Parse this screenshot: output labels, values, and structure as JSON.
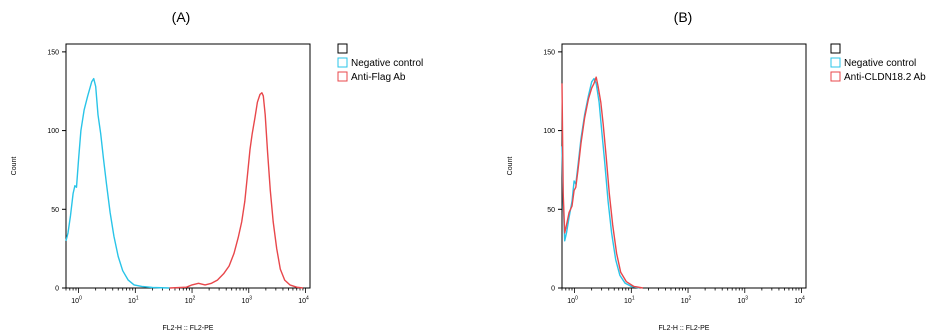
{
  "chart_data": [
    {
      "type": "line",
      "panel_label": "(A)",
      "xlabel": "FL2-H :: FL2-PE",
      "ylabel": "Count",
      "xscale": "log",
      "xlim": [
        0.6,
        12000
      ],
      "ylim": [
        0,
        155
      ],
      "x_ticks": [
        {
          "value": 1,
          "base": "10",
          "exp": "0"
        },
        {
          "value": 10,
          "base": "10",
          "exp": "1"
        },
        {
          "value": 100,
          "base": "10",
          "exp": "2"
        },
        {
          "value": 1000,
          "base": "10",
          "exp": "3"
        },
        {
          "value": 10000,
          "base": "10",
          "exp": "4"
        }
      ],
      "y_ticks": [
        0,
        50,
        100,
        150
      ],
      "grid": false,
      "legend_position": "right",
      "legend": [
        "",
        "Negative control",
        "Anti-Flag Ab"
      ],
      "colors": {
        "Negative control": "#29c4e8",
        "Anti-Flag Ab": "#e8474b"
      },
      "series": [
        {
          "name": "Negative control",
          "points": [
            [
              0.6,
              30
            ],
            [
              0.65,
              35
            ],
            [
              0.72,
              46
            ],
            [
              0.8,
              60
            ],
            [
              0.86,
              65
            ],
            [
              0.92,
              64
            ],
            [
              1.0,
              82
            ],
            [
              1.1,
              100
            ],
            [
              1.25,
              113
            ],
            [
              1.45,
              122
            ],
            [
              1.7,
              131
            ],
            [
              1.85,
              133
            ],
            [
              2.0,
              128
            ],
            [
              2.2,
              110
            ],
            [
              2.45,
              98
            ],
            [
              2.75,
              82
            ],
            [
              3.1,
              66
            ],
            [
              3.6,
              48
            ],
            [
              4.2,
              33
            ],
            [
              5.0,
              20
            ],
            [
              6.0,
              11
            ],
            [
              7.5,
              5
            ],
            [
              9.5,
              2
            ],
            [
              13,
              1
            ],
            [
              20,
              0.3
            ],
            [
              40,
              0
            ]
          ]
        },
        {
          "name": "Anti-Flag Ab",
          "points": [
            [
              40,
              0
            ],
            [
              80,
              0.5
            ],
            [
              100,
              2
            ],
            [
              130,
              3
            ],
            [
              170,
              2
            ],
            [
              220,
              3
            ],
            [
              280,
              5
            ],
            [
              360,
              9
            ],
            [
              450,
              14
            ],
            [
              550,
              22
            ],
            [
              650,
              32
            ],
            [
              750,
              42
            ],
            [
              850,
              55
            ],
            [
              950,
              72
            ],
            [
              1050,
              88
            ],
            [
              1150,
              98
            ],
            [
              1280,
              108
            ],
            [
              1420,
              118
            ],
            [
              1580,
              123
            ],
            [
              1700,
              124
            ],
            [
              1800,
              122
            ],
            [
              1950,
              110
            ],
            [
              2150,
              86
            ],
            [
              2400,
              62
            ],
            [
              2700,
              42
            ],
            [
              3100,
              25
            ],
            [
              3600,
              12
            ],
            [
              4300,
              5
            ],
            [
              5300,
              2
            ],
            [
              7000,
              0.5
            ],
            [
              9000,
              0
            ]
          ]
        }
      ]
    },
    {
      "type": "line",
      "panel_label": "(B)",
      "xlabel": "FL2-H :: FL2-PE",
      "ylabel": "Count",
      "xscale": "log",
      "xlim": [
        0.6,
        12000
      ],
      "ylim": [
        0,
        155
      ],
      "x_ticks": [
        {
          "value": 1,
          "base": "10",
          "exp": "0"
        },
        {
          "value": 10,
          "base": "10",
          "exp": "1"
        },
        {
          "value": 100,
          "base": "10",
          "exp": "2"
        },
        {
          "value": 1000,
          "base": "10",
          "exp": "3"
        },
        {
          "value": 10000,
          "base": "10",
          "exp": "4"
        }
      ],
      "y_ticks": [
        0,
        50,
        100,
        150
      ],
      "grid": false,
      "legend_position": "right",
      "legend": [
        "",
        "Negative control",
        "Anti-CLDN18.2 Ab"
      ],
      "colors": {
        "Negative control": "#29c4e8",
        "Anti-CLDN18.2 Ab": "#e8474b"
      },
      "series": [
        {
          "name": "Negative control",
          "points": [
            [
              0.6,
              90
            ],
            [
              0.63,
              55
            ],
            [
              0.67,
              30
            ],
            [
              0.72,
              35
            ],
            [
              0.8,
              45
            ],
            [
              0.9,
              55
            ],
            [
              0.98,
              68
            ],
            [
              1.05,
              66
            ],
            [
              1.15,
              78
            ],
            [
              1.3,
              95
            ],
            [
              1.5,
              110
            ],
            [
              1.75,
              122
            ],
            [
              2.0,
              131
            ],
            [
              2.2,
              133
            ],
            [
              2.4,
              130
            ],
            [
              2.7,
              118
            ],
            [
              3.0,
              100
            ],
            [
              3.4,
              80
            ],
            [
              3.9,
              55
            ],
            [
              4.5,
              35
            ],
            [
              5.3,
              18
            ],
            [
              6.3,
              8
            ],
            [
              7.8,
              3
            ],
            [
              10,
              1
            ],
            [
              14,
              0
            ]
          ]
        },
        {
          "name": "Anti-CLDN18.2 Ab",
          "points": [
            [
              0.6,
              130
            ],
            [
              0.63,
              60
            ],
            [
              0.67,
              35
            ],
            [
              0.72,
              40
            ],
            [
              0.8,
              48
            ],
            [
              0.9,
              52
            ],
            [
              0.98,
              62
            ],
            [
              1.05,
              64
            ],
            [
              1.15,
              75
            ],
            [
              1.3,
              92
            ],
            [
              1.5,
              108
            ],
            [
              1.75,
              120
            ],
            [
              2.0,
              127
            ],
            [
              2.2,
              130
            ],
            [
              2.4,
              134
            ],
            [
              2.6,
              128
            ],
            [
              2.9,
              118
            ],
            [
              3.2,
              104
            ],
            [
              3.6,
              84
            ],
            [
              4.1,
              60
            ],
            [
              4.7,
              40
            ],
            [
              5.5,
              22
            ],
            [
              6.5,
              10
            ],
            [
              8.2,
              4
            ],
            [
              11,
              1
            ],
            [
              16,
              0
            ]
          ]
        }
      ]
    }
  ]
}
